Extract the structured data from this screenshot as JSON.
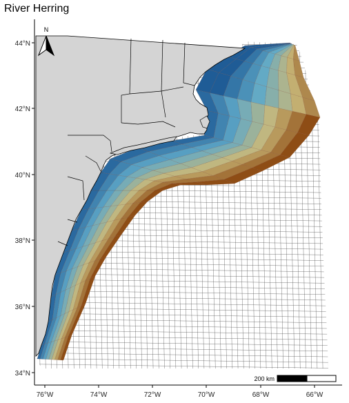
{
  "title": "River Herring",
  "north_label": "N",
  "scale_bar_label": "200 km",
  "lon_ticks": [
    "76°W",
    "74°W",
    "72°W",
    "70°W",
    "68°W",
    "66°W"
  ],
  "lat_ticks": [
    "44°N",
    "42°N",
    "40°N",
    "38°N",
    "36°N",
    "34°N"
  ],
  "colors": {
    "land": "#d4d4d4",
    "grid_line": "#333333",
    "high": "#1f5c96",
    "mid": "#5fa9c8",
    "low_mid": "#c8b87a",
    "low": "#8c4a12"
  }
}
